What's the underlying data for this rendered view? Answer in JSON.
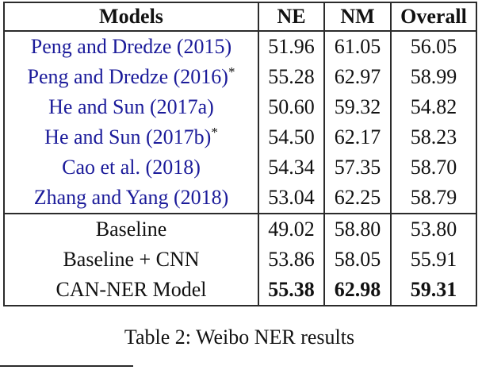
{
  "colors": {
    "citation_blue": "#1b1b9a",
    "line": "#2b2b2b"
  },
  "table": {
    "caption": "Table 2: Weibo NER results",
    "columns": [
      "Models",
      "NE",
      "NM",
      "Overall"
    ],
    "groups": [
      {
        "rows": [
          {
            "model": "Peng and Dredze (2015)",
            "citation": true,
            "marker": "",
            "values": [
              "51.96",
              "61.05",
              "56.05"
            ],
            "bold_values": false
          },
          {
            "model": "Peng and Dredze (2016)",
            "citation": true,
            "marker": "*",
            "values": [
              "55.28",
              "62.97",
              "58.99"
            ],
            "bold_values": false
          },
          {
            "model": "He and Sun (2017a)",
            "citation": true,
            "marker": "",
            "values": [
              "50.60",
              "59.32",
              "54.82"
            ],
            "bold_values": false
          },
          {
            "model": "He and Sun (2017b)",
            "citation": true,
            "marker": "*",
            "values": [
              "54.50",
              "62.17",
              "58.23"
            ],
            "bold_values": false
          },
          {
            "model": "Cao et al. (2018)",
            "citation": true,
            "marker": "",
            "values": [
              "54.34",
              "57.35",
              "58.70"
            ],
            "bold_values": false
          },
          {
            "model": "Zhang and Yang (2018)",
            "citation": true,
            "marker": "",
            "values": [
              "53.04",
              "62.25",
              "58.79"
            ],
            "bold_values": false
          }
        ]
      },
      {
        "rows": [
          {
            "model": "Baseline",
            "citation": false,
            "marker": "",
            "values": [
              "49.02",
              "58.80",
              "53.80"
            ],
            "bold_values": false
          },
          {
            "model": "Baseline + CNN",
            "citation": false,
            "marker": "",
            "values": [
              "53.86",
              "58.05",
              "55.91"
            ],
            "bold_values": false
          },
          {
            "model": "CAN-NER Model",
            "citation": false,
            "marker": "",
            "values": [
              "55.38",
              "62.98",
              "59.31"
            ],
            "bold_values": true
          }
        ]
      }
    ]
  }
}
